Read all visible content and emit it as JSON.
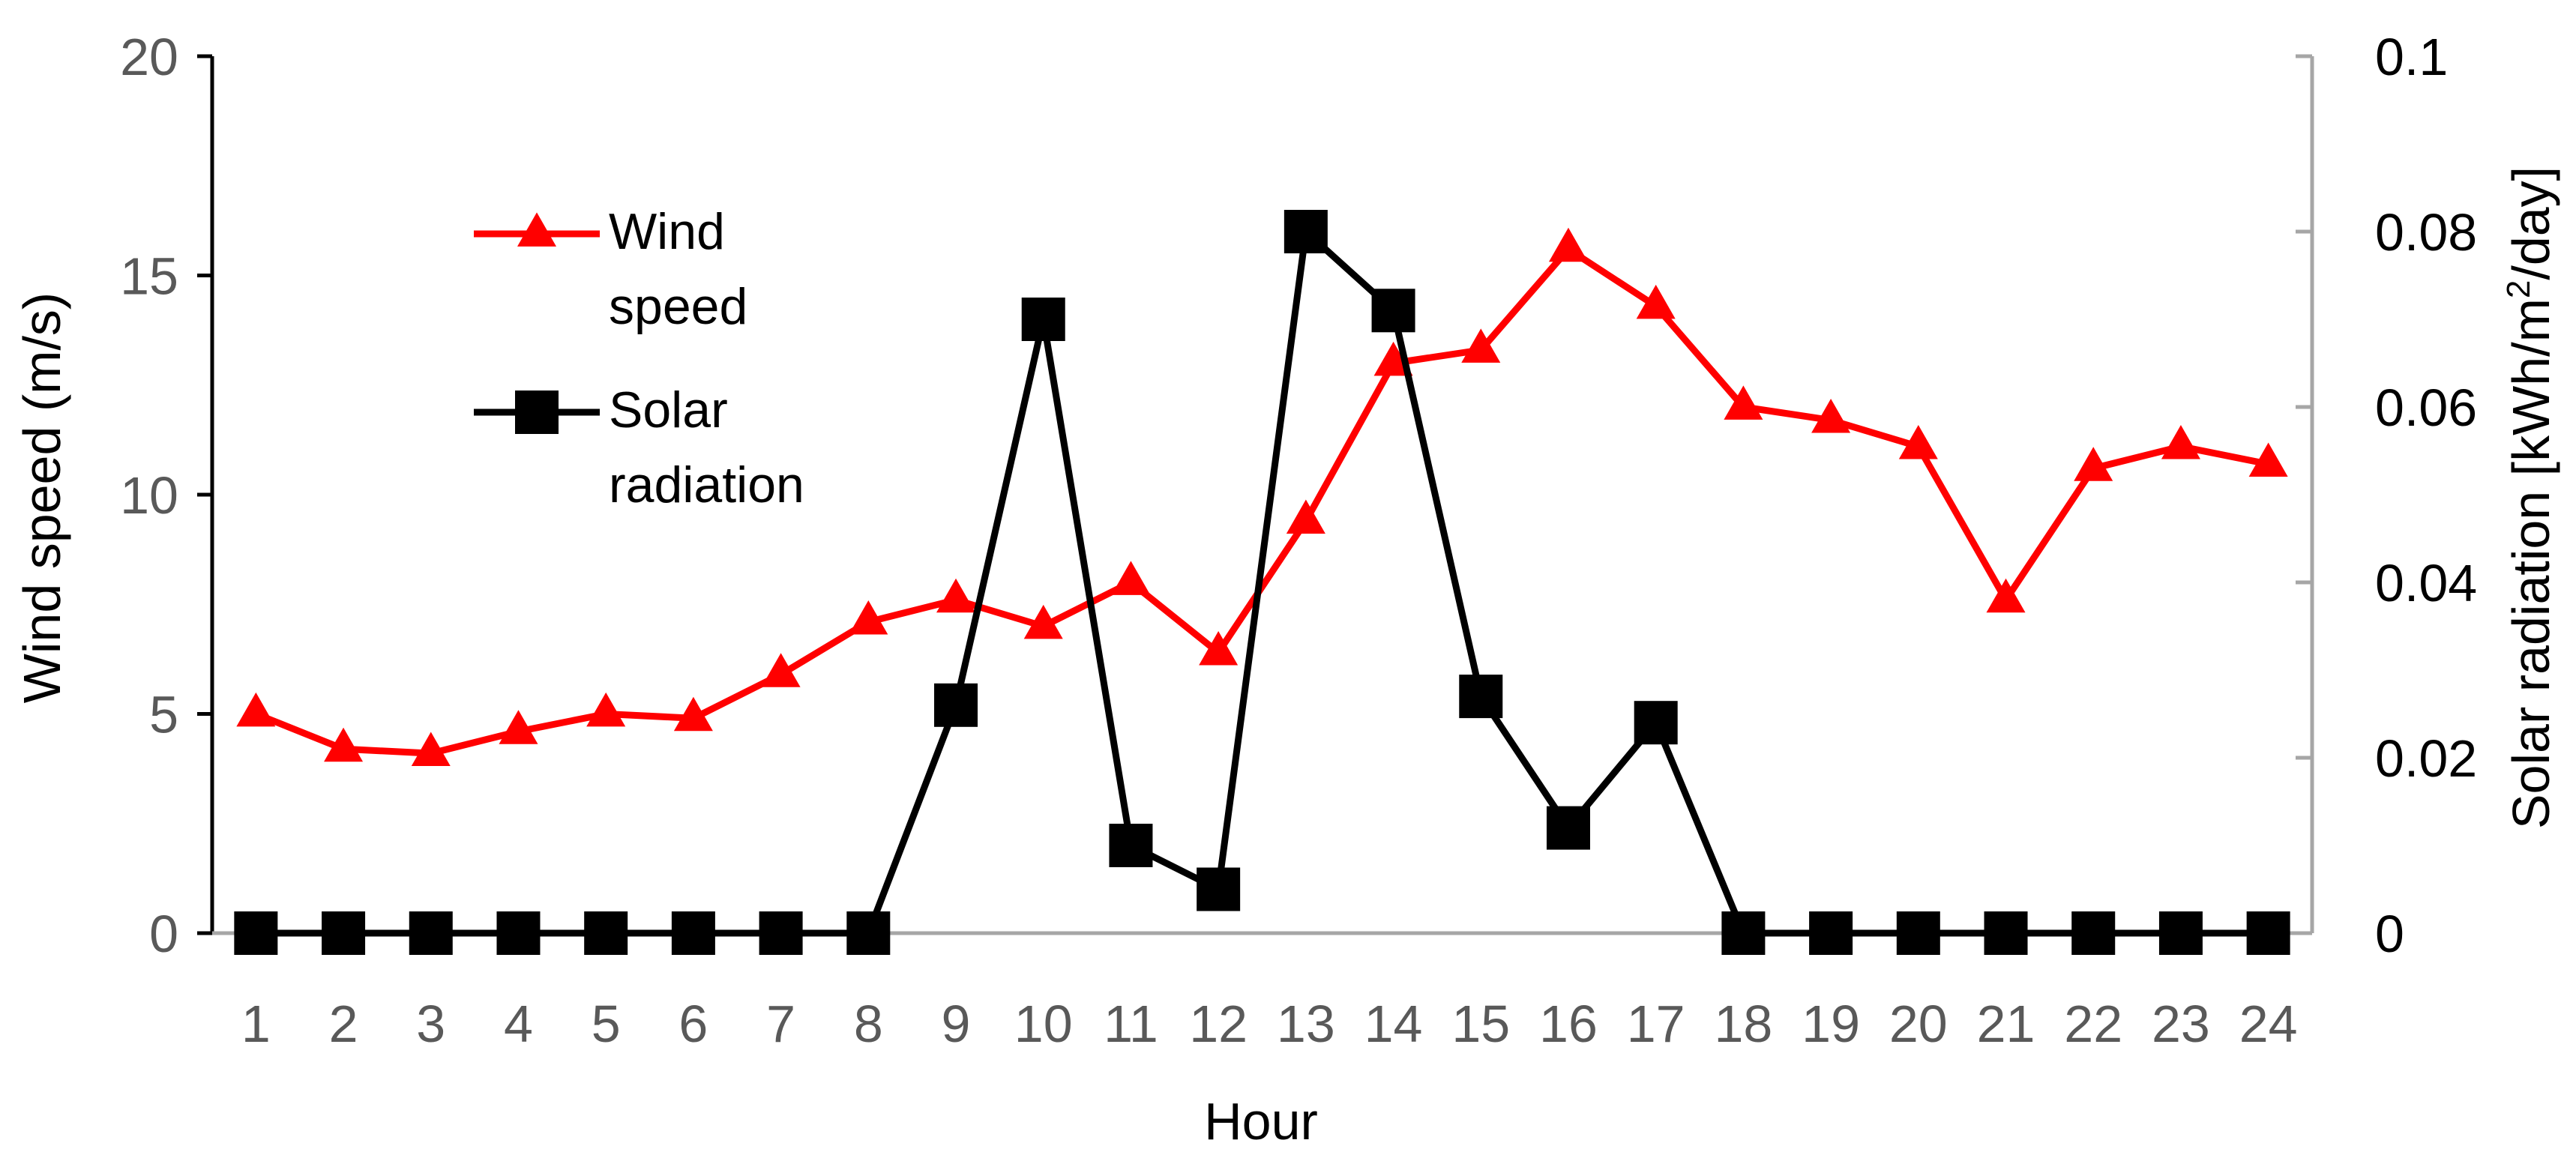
{
  "chart_data": {
    "type": "line",
    "title": "",
    "x": [
      1,
      2,
      3,
      4,
      5,
      6,
      7,
      8,
      9,
      10,
      11,
      12,
      13,
      14,
      15,
      16,
      17,
      18,
      19,
      20,
      21,
      22,
      23,
      24
    ],
    "xlabel": "Hour",
    "y_left": {
      "label": "Wind speed (m/s)",
      "range": [
        0,
        20
      ],
      "ticks": [
        0,
        5,
        10,
        15,
        20
      ]
    },
    "y_right": {
      "label_prefix": "Solar radiation [kWh/m",
      "label_sup": "2",
      "label_suffix": "/day]",
      "range": [
        0,
        0.1
      ],
      "ticks": [
        0,
        0.02,
        0.04,
        0.06,
        0.08,
        0.1
      ],
      "tick_labels": [
        "0",
        "0.02",
        "0.04",
        "0.06",
        "0.08",
        "0.1"
      ]
    },
    "series": [
      {
        "name": "Wind speed",
        "legend_lines": [
          "Wind",
          "speed"
        ],
        "axis": "left",
        "color": "#ff0000",
        "marker": "triangle",
        "values": [
          5.0,
          4.2,
          4.1,
          4.6,
          5.0,
          4.9,
          5.9,
          7.1,
          7.6,
          7.0,
          8.0,
          6.4,
          9.4,
          13.0,
          13.3,
          15.6,
          14.3,
          12.0,
          11.7,
          11.1,
          7.6,
          10.6,
          11.1,
          10.7
        ]
      },
      {
        "name": "Solar radiation",
        "legend_lines": [
          "Solar",
          "radiation"
        ],
        "axis": "right",
        "color": "#000000",
        "marker": "square",
        "values": [
          0,
          0,
          0,
          0,
          0,
          0,
          0,
          0,
          0.026,
          0.07,
          0.01,
          0.005,
          0.08,
          0.071,
          0.027,
          0.012,
          0.024,
          0,
          0,
          0,
          0,
          0,
          0,
          0
        ]
      }
    ],
    "grid": false,
    "legend_position": "top-left inside plot"
  }
}
